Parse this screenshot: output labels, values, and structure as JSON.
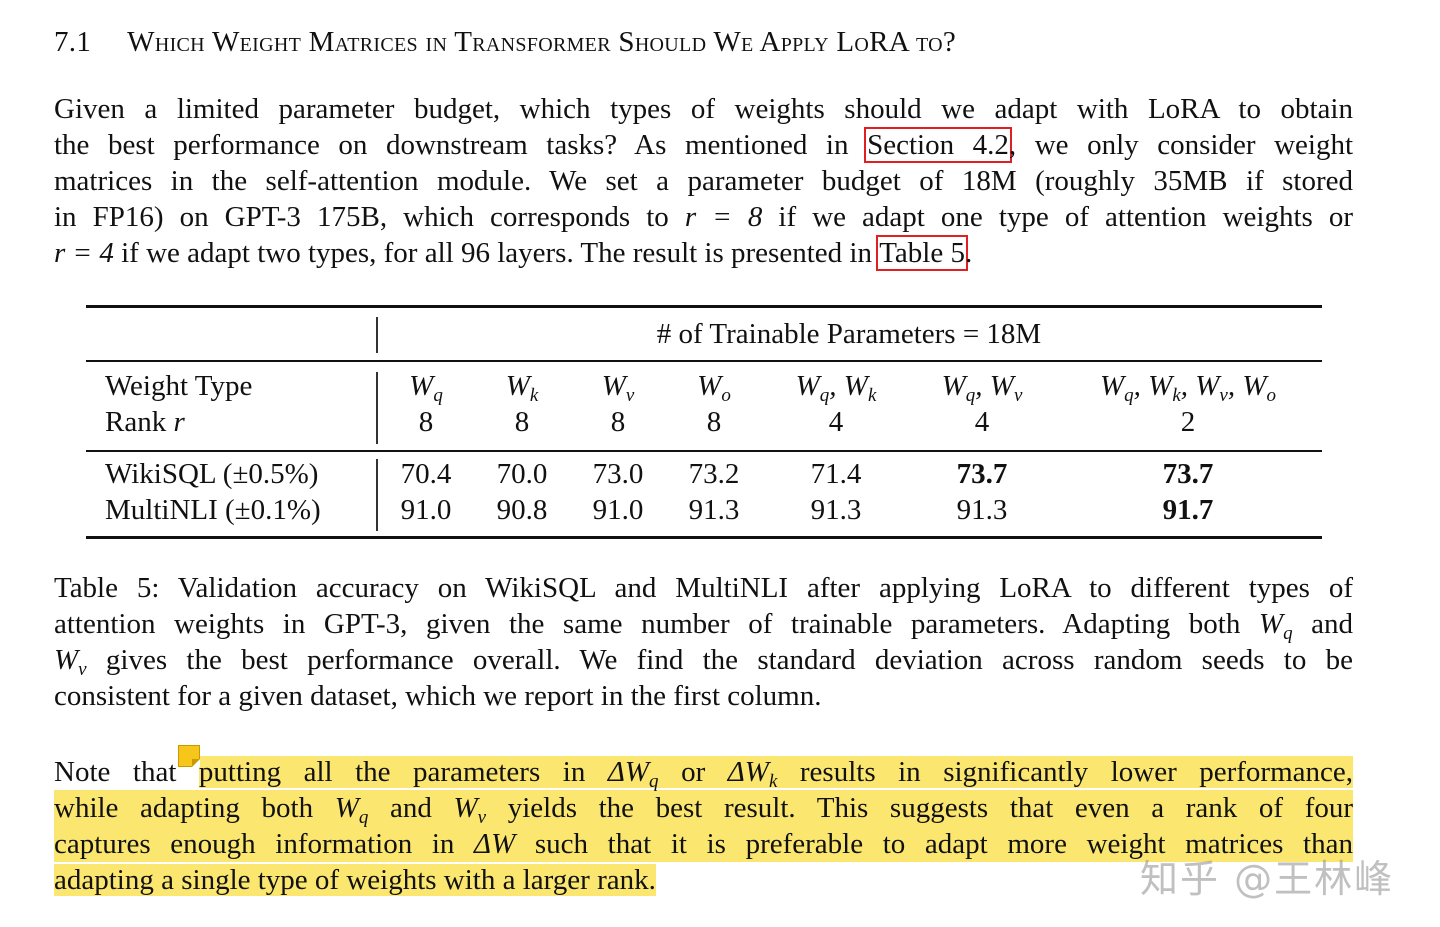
{
  "section": {
    "number": "7.1",
    "title": "Which Weight Matrices in Transformer Should We Apply LoRA to?"
  },
  "intro": {
    "l1": "Given a limited parameter budget, which types of weights should we adapt with LoRA to obtain",
    "l2a": "the best performance on downstream tasks? As mentioned in ",
    "l2ref": "Section 4.2",
    "l2b": ", we only consider weight",
    "l3": "matrices in the self-attention module. We set a parameter budget of 18M (roughly 35MB if stored",
    "l4a": "in FP16) on GPT-3 175B, which corresponds to ",
    "l4m": "r = 8",
    "l4b": " if we adapt one type of attention weights or",
    "l5m": "r = 4",
    "l5a": " if we adapt two types, for all 96 layers. The result is presented in ",
    "l5ref": "Table 5",
    "l5b": "."
  },
  "table": {
    "group_header": "# of Trainable Parameters = 18M",
    "row_labels": {
      "weight_type": "Weight Type",
      "rank": "Rank ",
      "rank_var": "r"
    },
    "columns": [
      {
        "weight": "Wq",
        "rank": "8"
      },
      {
        "weight": "Wk",
        "rank": "8"
      },
      {
        "weight": "Wv",
        "rank": "8"
      },
      {
        "weight": "Wo",
        "rank": "8"
      },
      {
        "weight": "Wq, Wk",
        "rank": "4"
      },
      {
        "weight": "Wq, Wv",
        "rank": "4"
      },
      {
        "weight": "Wq, Wk, Wv, Wo",
        "rank": "2"
      }
    ],
    "rows": [
      {
        "label": "WikiSQL (±0.5%)",
        "values": [
          "70.4",
          "70.0",
          "73.0",
          "73.2",
          "71.4",
          "73.7",
          "73.7"
        ],
        "bold": [
          false,
          false,
          false,
          false,
          false,
          true,
          true
        ]
      },
      {
        "label": "MultiNLI (±0.1%)",
        "values": [
          "91.0",
          "90.8",
          "91.0",
          "91.3",
          "91.3",
          "91.3",
          "91.7"
        ],
        "bold": [
          false,
          false,
          false,
          false,
          false,
          false,
          true
        ]
      }
    ]
  },
  "caption": {
    "l1": "Table 5: Validation accuracy on WikiSQL and MultiNLI after applying LoRA to different types of",
    "l2a": "attention weights in GPT-3, given the same number of trainable parameters. Adapting both ",
    "l2m": "Wq",
    "l2b": " and",
    "l3m": "Wv",
    "l3a": " gives the best performance overall. We find the standard deviation across random seeds to be",
    "l4": "consistent for a given dataset, which we report in the first column."
  },
  "note": {
    "l1a": "Note that ",
    "l1b": "putting all the parameters in ",
    "l1m1": "ΔWq",
    "l1c": " or ",
    "l1m2": "ΔWk",
    "l1d": " results in significantly lower performance,",
    "l2a": "while adapting both ",
    "l2m1": "Wq",
    "l2b": " and ",
    "l2m2": "Wv",
    "l2c": " yields the best result. This suggests that even a rank of four",
    "l3a": "captures enough information in ",
    "l3m": "ΔW",
    "l3b": " such that it is preferable to adapt more weight matrices than",
    "l4": "adapting a single type of weights with a larger rank."
  },
  "colors": {
    "highlight": "#fbe770",
    "reference_box": "#e02020",
    "note_icon": "#f7c61a"
  },
  "icons": {
    "annotation": "sticky-note-icon"
  },
  "watermark": "知乎 @王林峰"
}
